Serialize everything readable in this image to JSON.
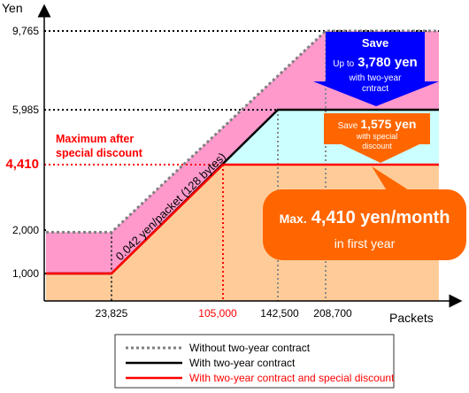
{
  "chart_data": {
    "type": "area",
    "x_unit": "Packets",
    "y_unit": "Yen",
    "y_ticks": [
      {
        "value": 1000,
        "label": "1,000",
        "color": "#000000"
      },
      {
        "value": 2000,
        "label": "2,000",
        "color": "#000000"
      },
      {
        "value": 4410,
        "label": "4,410",
        "color": "#ff0000"
      },
      {
        "value": 5985,
        "label": "5,985",
        "color": "#000000"
      },
      {
        "value": 9765,
        "label": "9,765",
        "color": "#000000"
      }
    ],
    "x_ticks": [
      {
        "value": 23825,
        "label": "23,825",
        "color": "#000000"
      },
      {
        "value": 105000,
        "label": "105,000",
        "color": "#ff0000"
      },
      {
        "value": 142500,
        "label": "142,500",
        "color": "#000000"
      },
      {
        "value": 208700,
        "label": "208,700",
        "color": "#000000"
      }
    ],
    "series": [
      {
        "name": "Without two-year contract",
        "color": "#808080",
        "style": "dotted",
        "points": [
          [
            0,
            1950
          ],
          [
            23825,
            1950
          ],
          [
            208700,
            9765
          ],
          [
            240000,
            9765
          ]
        ]
      },
      {
        "name": "With two-year contract",
        "color": "#000000",
        "style": "solid",
        "points": [
          [
            0,
            1000
          ],
          [
            23825,
            1000
          ],
          [
            142500,
            5985
          ],
          [
            240000,
            5985
          ]
        ]
      },
      {
        "name": "With two-year contract and special discount",
        "color": "#ff0000",
        "style": "solid",
        "points": [
          [
            0,
            1000
          ],
          [
            23825,
            1000
          ],
          [
            105000,
            4410
          ],
          [
            240000,
            4410
          ]
        ]
      }
    ],
    "fills": {
      "without": "#ff99cc",
      "with": "#ccffff",
      "special": "#ffcc99"
    },
    "line_label": "0.042 yen/packet (128 bytes)",
    "max_label_line1": "Maximum after",
    "max_label_line2": "special discount",
    "callouts": {
      "save_blue": {
        "line1": "Save",
        "prefix": "Up to",
        "amount": "3,780 yen",
        "line3": "with two-year",
        "line4": "cntract",
        "color": "#0000ff"
      },
      "save_orange": {
        "prefix": "Save",
        "amount": "1,575 yen",
        "line2": "with special",
        "line3": "discount",
        "color": "#ff6600"
      },
      "max_bubble": {
        "prefix": "Max.",
        "amount": "4,410 yen/month",
        "line2": "in first year",
        "color": "#ff6600"
      }
    },
    "legend_position": "bottom"
  }
}
